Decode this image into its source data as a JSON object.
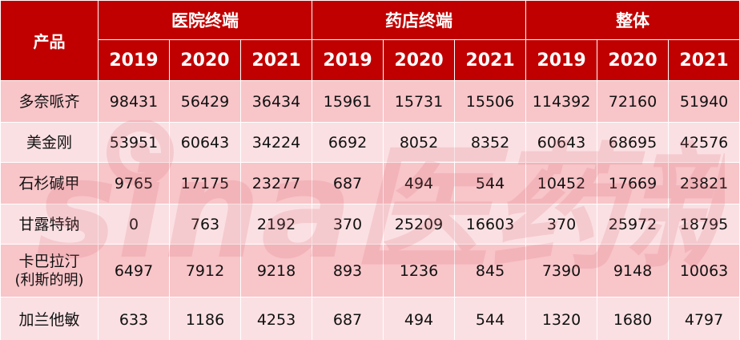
{
  "table": {
    "product_header": "产品",
    "groups": [
      "医院终端",
      "药店终端",
      "整体"
    ],
    "years": [
      "2019",
      "2020",
      "2021"
    ],
    "rows": [
      {
        "name": "多奈哌齐",
        "sub": "",
        "values": [
          "98431",
          "56429",
          "36434",
          "15961",
          "15731",
          "15506",
          "114392",
          "72160",
          "51940"
        ]
      },
      {
        "name": "美金刚",
        "sub": "",
        "values": [
          "53951",
          "60643",
          "34224",
          "6692",
          "8052",
          "8352",
          "60643",
          "68695",
          "42576"
        ]
      },
      {
        "name": "石杉碱甲",
        "sub": "",
        "values": [
          "9765",
          "17175",
          "23277",
          "687",
          "494",
          "544",
          "10452",
          "17669",
          "23821"
        ]
      },
      {
        "name": "甘露特钠",
        "sub": "",
        "values": [
          "0",
          "763",
          "2192",
          "370",
          "25209",
          "16603",
          "370",
          "25972",
          "18795"
        ]
      },
      {
        "name": "卡巴拉汀",
        "sub": "(利斯的明)",
        "values": [
          "6497",
          "7912",
          "9218",
          "893",
          "1236",
          "845",
          "7390",
          "9148",
          "10063"
        ]
      },
      {
        "name": "加兰他敏",
        "sub": "",
        "values": [
          "633",
          "1186",
          "4253",
          "687",
          "494",
          "544",
          "1320",
          "1680",
          "4797"
        ]
      }
    ]
  },
  "watermark": {
    "text": "sina医药新闻",
    "color": "#e8a0a6"
  },
  "colors": {
    "header_bg": "#c00000",
    "header_text": "#ffffff",
    "row_odd": "#f8c5c9",
    "row_even": "#fbe0e3",
    "cell_text": "#111111"
  }
}
